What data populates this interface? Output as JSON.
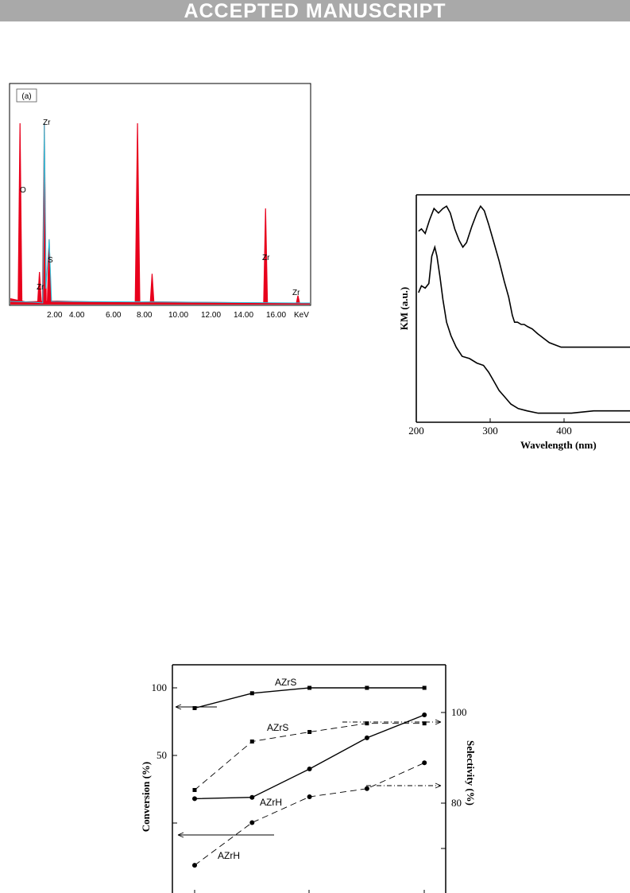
{
  "banner": {
    "text": "ACCEPTED MANUSCRIPT"
  },
  "figures": {
    "edx": {
      "panel_label": "(a)",
      "ticks": [
        "2.00",
        "4.00",
        "6.00",
        "8.00",
        "10.00",
        "12.00",
        "14.00",
        "16.00"
      ],
      "unit": "KeV",
      "peak_labels": [
        "O",
        "Zr",
        "Zr",
        "S",
        "Zr",
        "Zr"
      ],
      "colors": {
        "fill": "#e8001c",
        "line": "#29c6e0"
      }
    },
    "uvvis": {
      "ylabel": "KM (a.u.)",
      "xlabel": "Wavelength (nm)",
      "ticks": [
        "200",
        "300",
        "400"
      ]
    },
    "catalysis": {
      "ylabel_left": "Conversion (%)",
      "ylabel_right": "Selectivity (%)",
      "left_ticks": [
        "100",
        "50"
      ],
      "right_ticks": [
        "100",
        "80"
      ],
      "series_labels": [
        "AZrS",
        "AZrS",
        "AZrH",
        "AZrH"
      ]
    }
  },
  "chart_data": [
    {
      "type": "area",
      "x_unit": "KeV",
      "xlim": [
        0,
        18.3
      ],
      "series": [
        {
          "x": [
            0.5,
            1.7,
            2.0,
            2.3,
            7.75,
            8.65,
            15.65,
            17.65
          ],
          "values": [
            100,
            18,
            100,
            36,
            100,
            17,
            53,
            5
          ]
        }
      ]
    },
    {
      "type": "line",
      "xlabel": "Wavelength (nm)",
      "ylabel": "KM (a.u.)",
      "xlim": [
        200,
        493
      ],
      "series": [
        {
          "x": [
            203,
            207,
            212,
            218,
            224,
            230,
            236,
            241,
            246,
            252,
            258,
            263,
            268,
            275,
            282,
            287,
            292,
            298,
            305,
            312,
            319,
            325,
            330,
            333,
            337,
            342,
            346,
            351,
            357,
            364,
            372,
            380,
            388,
            396,
            405,
            420,
            440,
            460,
            480,
            493
          ],
          "values": [
            84,
            85,
            83,
            89,
            94,
            92,
            94,
            95,
            92,
            85,
            80,
            77,
            79,
            86,
            92,
            95,
            93,
            87,
            79,
            71,
            62,
            55,
            47,
            44,
            44,
            43,
            43,
            42,
            41,
            39,
            37,
            35,
            34,
            33,
            33,
            33,
            33,
            33,
            33,
            33
          ]
        },
        {
          "x": [
            203,
            207,
            212,
            217,
            221,
            225,
            228,
            232,
            236,
            241,
            247,
            254,
            262,
            272,
            282,
            291,
            298,
            305,
            312,
            320,
            328,
            338,
            350,
            365,
            380,
            395,
            410,
            440,
            470,
            493
          ],
          "values": [
            57,
            60,
            59,
            61,
            73,
            77,
            73,
            64,
            54,
            44,
            38,
            33,
            29,
            28,
            26,
            25,
            22,
            18,
            14,
            11,
            8,
            6,
            5,
            4,
            4,
            4,
            4,
            5,
            5,
            5
          ]
        }
      ]
    },
    {
      "type": "line",
      "ylabel": "Conversion (%)",
      "y2label": "Selectivity (%)",
      "x": [
        1,
        2,
        3,
        4,
        5
      ],
      "series": [
        {
          "name": "AZrS",
          "axis": "left",
          "values": [
            85,
            96,
            100,
            100,
            100
          ]
        },
        {
          "name": "AZrS",
          "axis": "right",
          "values": [
            82.9,
            93.6,
            95.7,
            97.6,
            97.6
          ]
        },
        {
          "name": "AZrH",
          "axis": "left",
          "values": [
            18,
            19,
            40,
            63,
            80
          ]
        },
        {
          "name": "AZrH",
          "axis": "right",
          "values": [
            66.3,
            75.7,
            81.4,
            83.2,
            88.9
          ]
        }
      ]
    }
  ]
}
